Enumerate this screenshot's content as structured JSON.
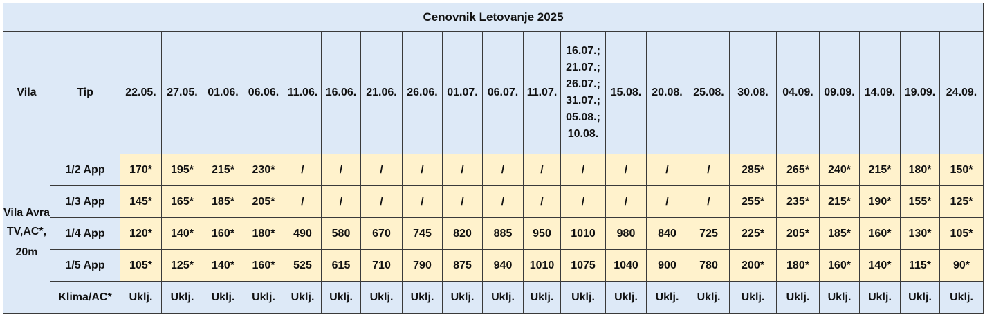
{
  "table": {
    "title": "Cenovnik Letovanje 2025",
    "headers": {
      "vila": "Vila",
      "tip": "Tip",
      "dates": [
        "22.05.",
        "27.05.",
        "01.06.",
        "06.06.",
        "11.06.",
        "16.06.",
        "21.06.",
        "26.06.",
        "01.07.",
        "06.07.",
        "11.07.",
        "16.07.; 21.07.; 26.07.; 31.07.; 05.08.; 10.08.",
        "15.08.",
        "20.08.",
        "25.08.",
        "30.08.",
        "04.09.",
        "09.09.",
        "14.09.",
        "19.09.",
        "24.09."
      ]
    },
    "vila": {
      "name": "Vila Avra",
      "details": "TV,AC*, 20m"
    },
    "rows": [
      {
        "tip": "1/2 App",
        "cells": [
          "170*",
          "195*",
          "215*",
          "230*",
          "/",
          "/",
          "/",
          "/",
          "/",
          "/",
          "/",
          "/",
          "/",
          "/",
          "/",
          "285*",
          "265*",
          "240*",
          "215*",
          "180*",
          "150*"
        ]
      },
      {
        "tip": "1/3 App",
        "cells": [
          "145*",
          "165*",
          "185*",
          "205*",
          "/",
          "/",
          "/",
          "/",
          "/",
          "/",
          "/",
          "/",
          "/",
          "/",
          "/",
          "255*",
          "235*",
          "215*",
          "190*",
          "155*",
          "125*"
        ]
      },
      {
        "tip": "1/4 App",
        "cells": [
          "120*",
          "140*",
          "160*",
          "180*",
          "490",
          "580",
          "670",
          "745",
          "820",
          "885",
          "950",
          "1010",
          "980",
          "840",
          "725",
          "225*",
          "205*",
          "185*",
          "160*",
          "130*",
          "105*"
        ]
      },
      {
        "tip": "1/5 App",
        "cells": [
          "105*",
          "125*",
          "140*",
          "160*",
          "525",
          "615",
          "710",
          "790",
          "875",
          "940",
          "1010",
          "1075",
          "1040",
          "900",
          "780",
          "200*",
          "180*",
          "160*",
          "140*",
          "115*",
          "90*"
        ]
      },
      {
        "tip": "Klima/AC*",
        "cells": [
          "Uklj.",
          "Uklj.",
          "Uklj.",
          "Uklj.",
          "Uklj.",
          "Uklj.",
          "Uklj.",
          "Uklj.",
          "Uklj.",
          "Uklj.",
          "Uklj.",
          "Uklj.",
          "Uklj.",
          "Uklj.",
          "Uklj.",
          "Uklj.",
          "Uklj.",
          "Uklj.",
          "Uklj.",
          "Uklj.",
          "Uklj."
        ]
      }
    ]
  }
}
